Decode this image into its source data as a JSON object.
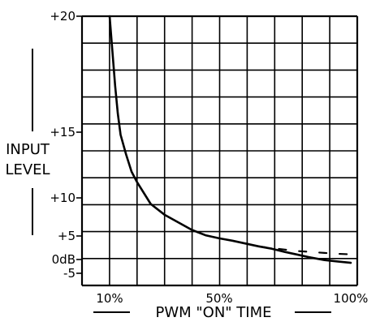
{
  "chart_data": {
    "type": "line",
    "title": "",
    "ylabel_lines": [
      "INPUT",
      "LEVEL"
    ],
    "xlabel": "PWM \"ON\" TIME",
    "y_tick_labels": [
      "+20",
      "+15",
      "+10",
      "+5",
      "0dB",
      "-5"
    ],
    "x_tick_labels": [
      "10%",
      "50%",
      "100%"
    ],
    "grid": true,
    "series": [
      {
        "x": [
          10,
          11,
          12,
          13,
          14,
          16,
          18,
          20,
          25,
          30,
          35,
          40,
          45,
          50,
          55,
          60,
          65,
          70,
          75,
          80,
          85,
          90,
          95,
          100
        ],
        "y": [
          20.0,
          18.5,
          17.0,
          15.8,
          14.8,
          13.3,
          12.0,
          11.2,
          9.2,
          7.8,
          6.8,
          5.8,
          5.1,
          4.5,
          4.0,
          3.4,
          2.8,
          2.3,
          1.6,
          1.0,
          0.4,
          -0.2,
          -0.7,
          -1.2
        ]
      },
      {
        "style": "dashed",
        "x": [
          65,
          70,
          75,
          80,
          85,
          90,
          95,
          100
        ],
        "y": [
          2.8,
          2.4,
          2.1,
          1.8,
          1.6,
          1.4,
          1.2,
          1.1
        ]
      }
    ]
  }
}
